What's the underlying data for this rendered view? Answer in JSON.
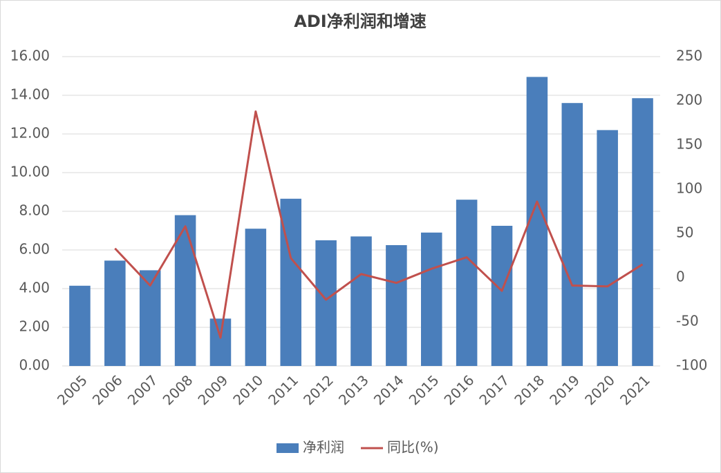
{
  "chart_data": {
    "type": "bar-line",
    "title": "ADI净利润和增速",
    "categories": [
      "2005",
      "2006",
      "2007",
      "2008",
      "2009",
      "2010",
      "2011",
      "2012",
      "2013",
      "2014",
      "2015",
      "2016",
      "2017",
      "2018",
      "2019",
      "2020",
      "2021"
    ],
    "series": [
      {
        "name": "净利润",
        "type": "bar",
        "color": "#4a7ebb",
        "values": [
          4.15,
          5.45,
          4.95,
          7.8,
          2.45,
          7.1,
          8.65,
          6.5,
          6.7,
          6.25,
          6.9,
          8.6,
          7.25,
          14.95,
          13.6,
          12.2,
          13.85
        ]
      },
      {
        "name": "同比(%)",
        "type": "line",
        "axis": "y2",
        "color": "#c0504d",
        "values": [
          null,
          33,
          -9,
          58,
          -68,
          188,
          22,
          -25,
          4,
          -6,
          10,
          23,
          -15,
          86,
          -9,
          -10,
          15
        ]
      }
    ],
    "ylim": [
      0,
      16
    ],
    "yticks": [
      {
        "value": 0,
        "label": "0.00"
      },
      {
        "value": 2,
        "label": "2.00"
      },
      {
        "value": 4,
        "label": "4.00"
      },
      {
        "value": 6,
        "label": "6.00"
      },
      {
        "value": 8,
        "label": "8.00"
      },
      {
        "value": 10,
        "label": "10.00"
      },
      {
        "value": 12,
        "label": "12.00"
      },
      {
        "value": 14,
        "label": "14.00"
      },
      {
        "value": 16,
        "label": "16.00"
      }
    ],
    "y2lim": [
      -100,
      250
    ],
    "y2ticks": [
      -100,
      -50,
      0,
      50,
      100,
      150,
      200,
      250
    ],
    "grid": true,
    "legend": "bottom"
  }
}
